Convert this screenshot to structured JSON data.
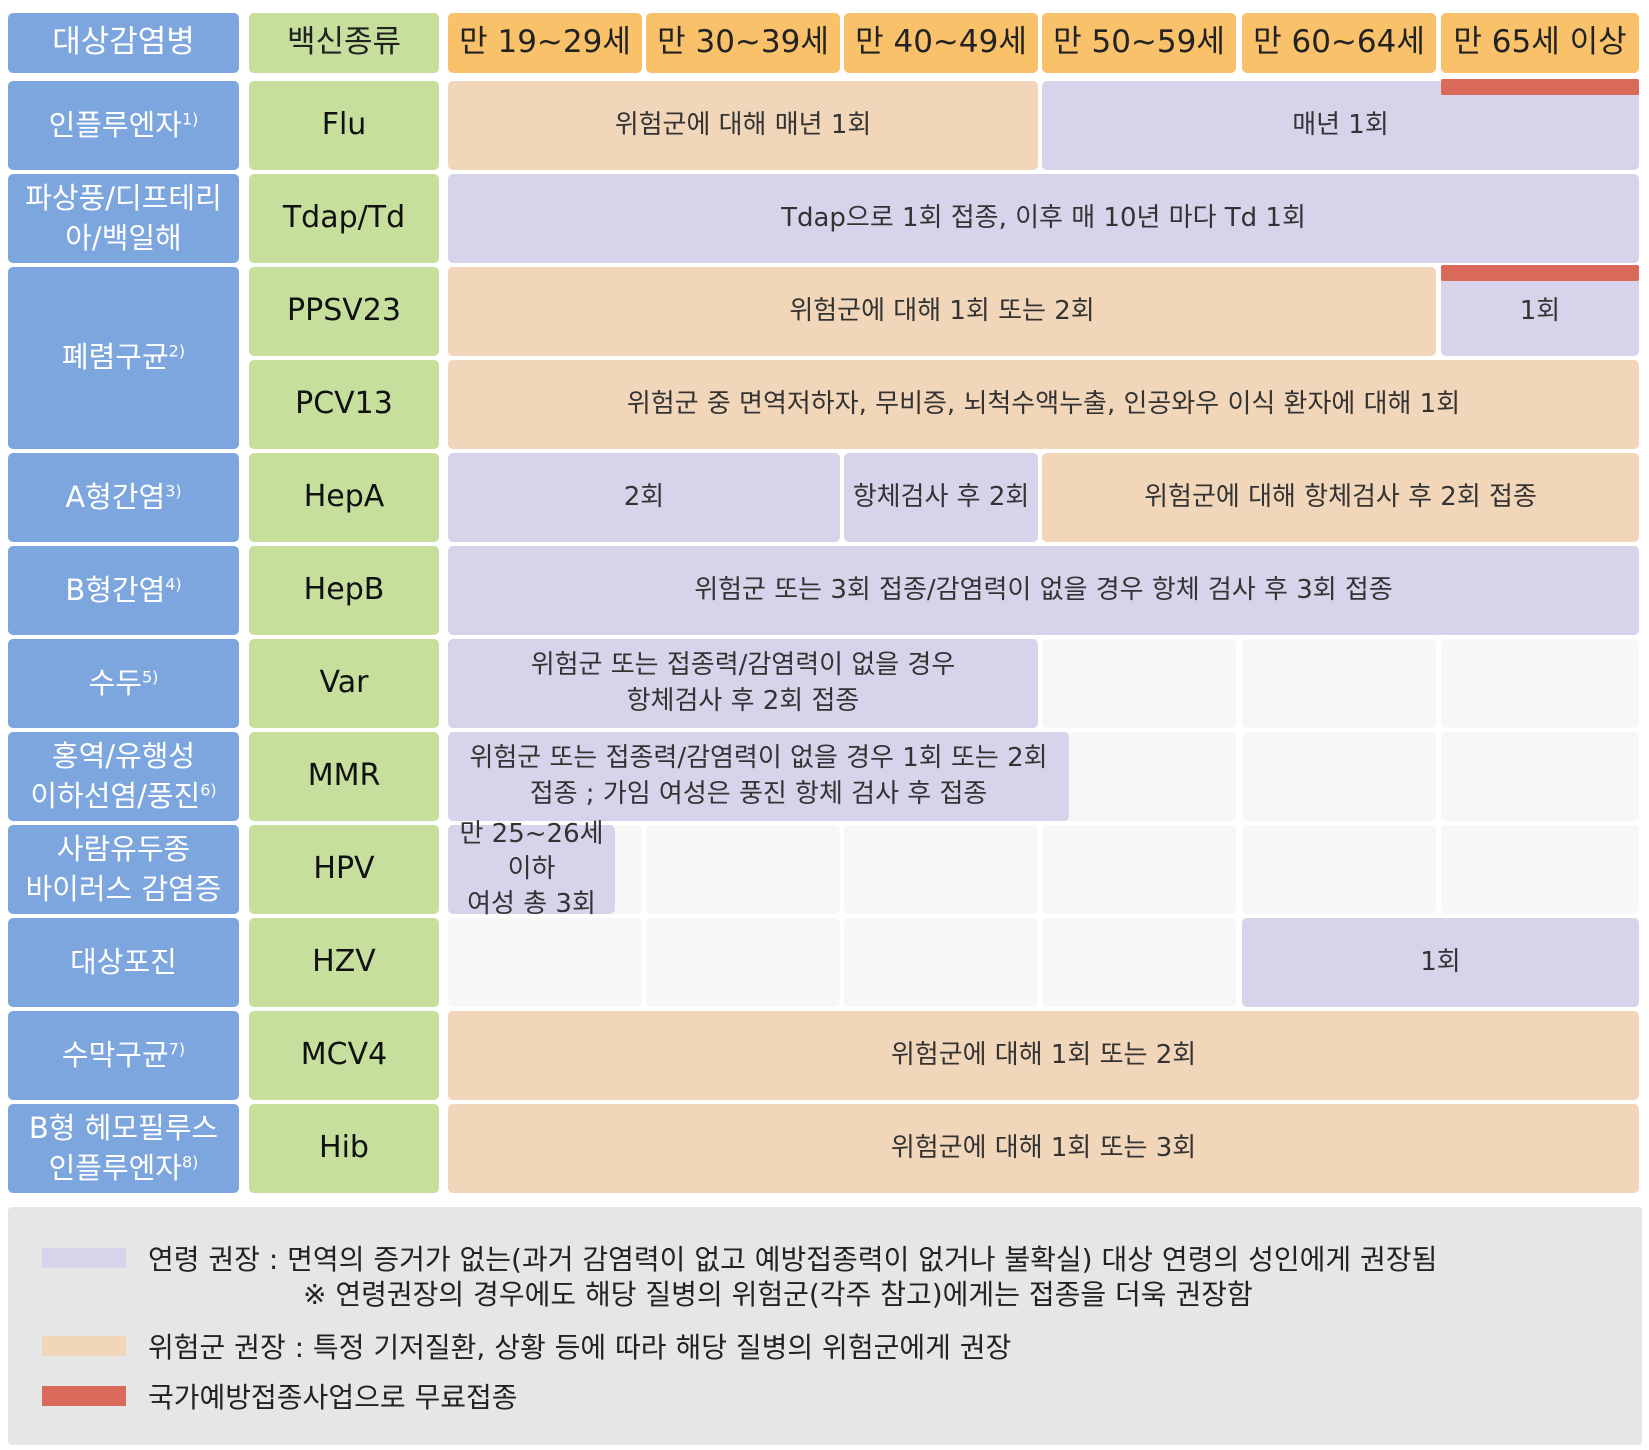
{
  "colors": {
    "age_recommended": "#d8d2ea",
    "risk_recommended": "#f1d6b9",
    "free_vaccination": "#da6a5a",
    "disease_header": "#7ea6de",
    "vaccine_header": "#c6df9c",
    "age_header": "#f8c16a",
    "not_applicable": "#f7f7f7"
  },
  "header": {
    "disease": "대상감염병",
    "vaccine": "백신종류",
    "ages": [
      "만 19~29세",
      "만 30~39세",
      "만 40~49세",
      "만 50~59세",
      "만 60~64세",
      "만 65세 이상"
    ]
  },
  "rows": [
    {
      "disease": "인플루엔자",
      "note": "1)",
      "vaccine": "Flu",
      "spans": [
        {
          "text": "위험군에 대해 매년 1회",
          "kind": "risk",
          "from_age": 0,
          "to_age": 2
        },
        {
          "text": "매년 1회",
          "kind": "age",
          "from_age": 3,
          "to_age": 5
        }
      ],
      "free_age": 5
    },
    {
      "disease": "파상풍/디프테리\n아/백일해",
      "note": "",
      "vaccine": "Tdap/Td",
      "spans": [
        {
          "text": "Tdap으로 1회 접종, 이후 매 10년 마다 Td 1회",
          "kind": "age",
          "from_age": 0,
          "to_age": 5
        }
      ]
    },
    {
      "disease": "폐렴구균",
      "note": "2)",
      "vaccine": "PPSV23",
      "disease_rows": 2,
      "spans": [
        {
          "text": "위험군에 대해 1회 또는 2회",
          "kind": "risk",
          "from_age": 0,
          "to_age": 4
        },
        {
          "text": "1회",
          "kind": "age",
          "from_age": 5,
          "to_age": 5
        }
      ],
      "free_age": 5
    },
    {
      "disease": "",
      "note": "",
      "vaccine": "PCV13",
      "spans": [
        {
          "text": "위험군 중 면역저하자, 무비증, 뇌척수액누출, 인공와우 이식 환자에 대해 1회",
          "kind": "risk",
          "from_age": 0,
          "to_age": 5
        }
      ]
    },
    {
      "disease": "A형간염",
      "note": "3)",
      "vaccine": "HepA",
      "spans": [
        {
          "text": "2회",
          "kind": "age",
          "from_age": 0,
          "to_age": 1
        },
        {
          "text": "항체검사 후 2회",
          "kind": "age",
          "from_age": 2,
          "to_age": 2
        },
        {
          "text": "위험군에 대해 항체검사 후 2회 접종",
          "kind": "risk",
          "from_age": 3,
          "to_age": 5
        }
      ]
    },
    {
      "disease": "B형간염",
      "note": "4)",
      "vaccine": "HepB",
      "spans": [
        {
          "text": "위험군 또는 3회 접종/감염력이 없을 경우 항체 검사 후 3회 접종",
          "kind": "age",
          "from_age": 0,
          "to_age": 5
        }
      ]
    },
    {
      "disease": "수두",
      "note": "5)",
      "vaccine": "Var",
      "spans": [
        {
          "text": "위험군 또는 접종력/감염력이 없을 경우\n항체검사 후 2회 접종",
          "kind": "age",
          "from_age": 0,
          "to_age": 2
        }
      ]
    },
    {
      "disease": "홍역/유행성\n이하선염/풍진",
      "note": "6)",
      "vaccine": "MMR",
      "spans": [
        {
          "text": "위험군 또는 접종력/감염력이 없을 경우 1회 또는 2회\n접종 ; 가임 여성은 풍진 항체 검사 후 접종",
          "kind": "age",
          "from_age": 0,
          "to_age": 2,
          "extend": 0.16
        }
      ]
    },
    {
      "disease": "사람유두종\n바이러스 감염증",
      "note": "",
      "vaccine": "HPV",
      "spans": [
        {
          "text": "만 25~26세 이하\n여성 총 3회",
          "kind": "age",
          "from_age": 0,
          "to_age": 0,
          "width_frac": 0.86
        }
      ]
    },
    {
      "disease": "대상포진",
      "note": "",
      "vaccine": "HZV",
      "spans": [
        {
          "text": "1회",
          "kind": "age",
          "from_age": 4,
          "to_age": 5
        }
      ]
    },
    {
      "disease": "수막구균",
      "note": "7)",
      "vaccine": "MCV4",
      "spans": [
        {
          "text": "위험군에 대해 1회 또는 2회",
          "kind": "risk",
          "from_age": 0,
          "to_age": 5
        }
      ]
    },
    {
      "disease": "B형 헤모필루스\n인플루엔자",
      "note": "8)",
      "vaccine": "Hib",
      "spans": [
        {
          "text": "위험군에 대해 1회 또는 3회",
          "kind": "risk",
          "from_age": 0,
          "to_age": 5
        }
      ]
    }
  ],
  "legend": {
    "age": "연령 권장 : 면역의 증거가 없는(과거 감염력이 없고 예방접종력이 없거나 불확실) 대상 연령의 성인에게 권장됨",
    "age_note": "※ 연령권장의 경우에도 해당 질병의 위험군(각주 참고)에게는 접종을 더욱 권장함",
    "risk": "위험군 권장 : 특정 기저질환, 상황 등에 따라 해당 질병의 위험군에게 권장",
    "free": "국가예방접종사업으로 무료접종"
  }
}
